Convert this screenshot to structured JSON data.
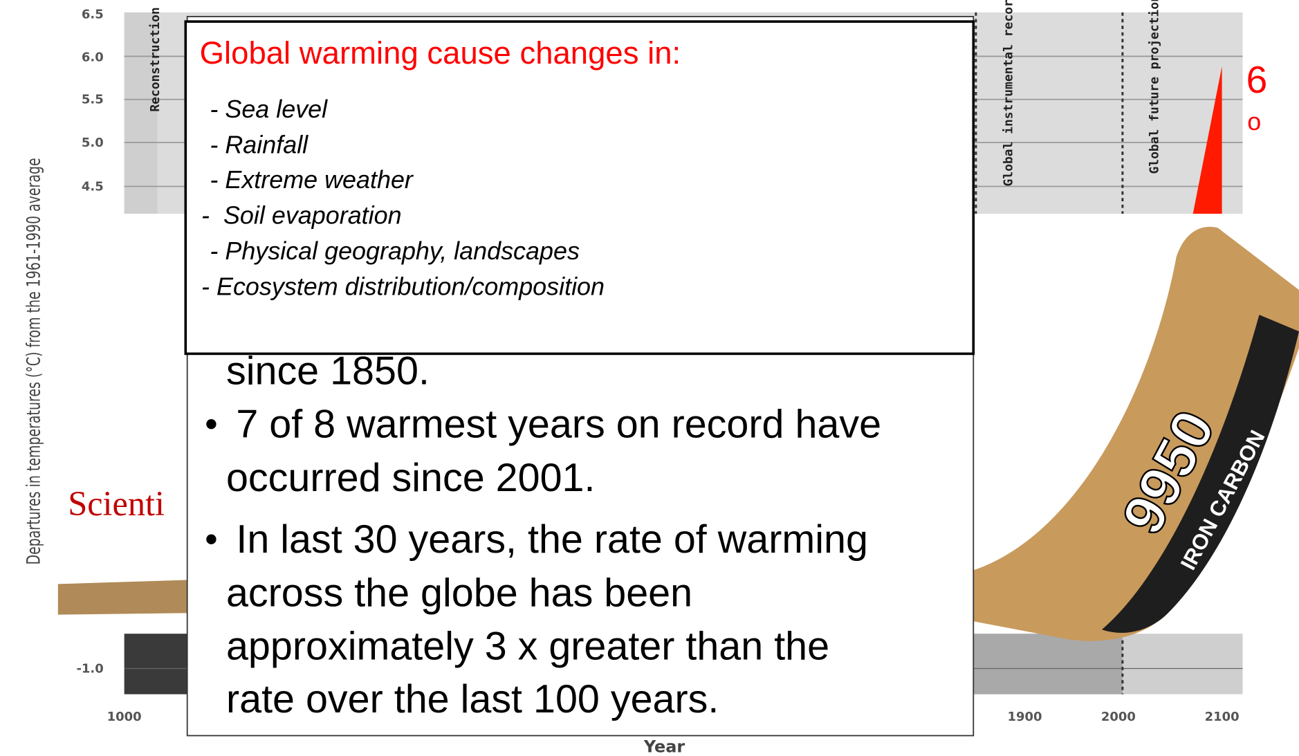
{
  "chart": {
    "y_axis_label": "Departures in temperatures (°C) from the 1961-1990 average",
    "y_ticks": [
      "6.5",
      "6.0",
      "5.5",
      "5.0",
      "4.5",
      "-1.0"
    ],
    "x_ticks": [
      "1000",
      "1900",
      "2000",
      "2100"
    ],
    "x_axis_label": "Year",
    "period_labels": [
      "Reconstruction",
      "Global instrumental record",
      "Global future projections"
    ],
    "side_number": "6",
    "side_degree": "o",
    "partial_heading": "Scienti",
    "stick_number": "9950",
    "stick_brand": "IRON CARBON"
  },
  "popup": {
    "title": "Global warming cause changes in:",
    "items": [
      " - Sea level",
      " - Rainfall",
      " - Extreme weather",
      "-  Soil evaporation",
      " - Physical geography, landscapes",
      "- Ecosystem distribution/composition"
    ]
  },
  "bullets": [
    {
      "lines": [
        "since 1850."
      ]
    },
    {
      "lines": [
        "7 of 8 warmest years on record have",
        "occurred since 2001."
      ]
    },
    {
      "lines": [
        "In last 30 years, the rate of warming",
        "across the globe has been",
        "approximately 3 x greater than the",
        "rate over the last 100 years."
      ]
    }
  ]
}
